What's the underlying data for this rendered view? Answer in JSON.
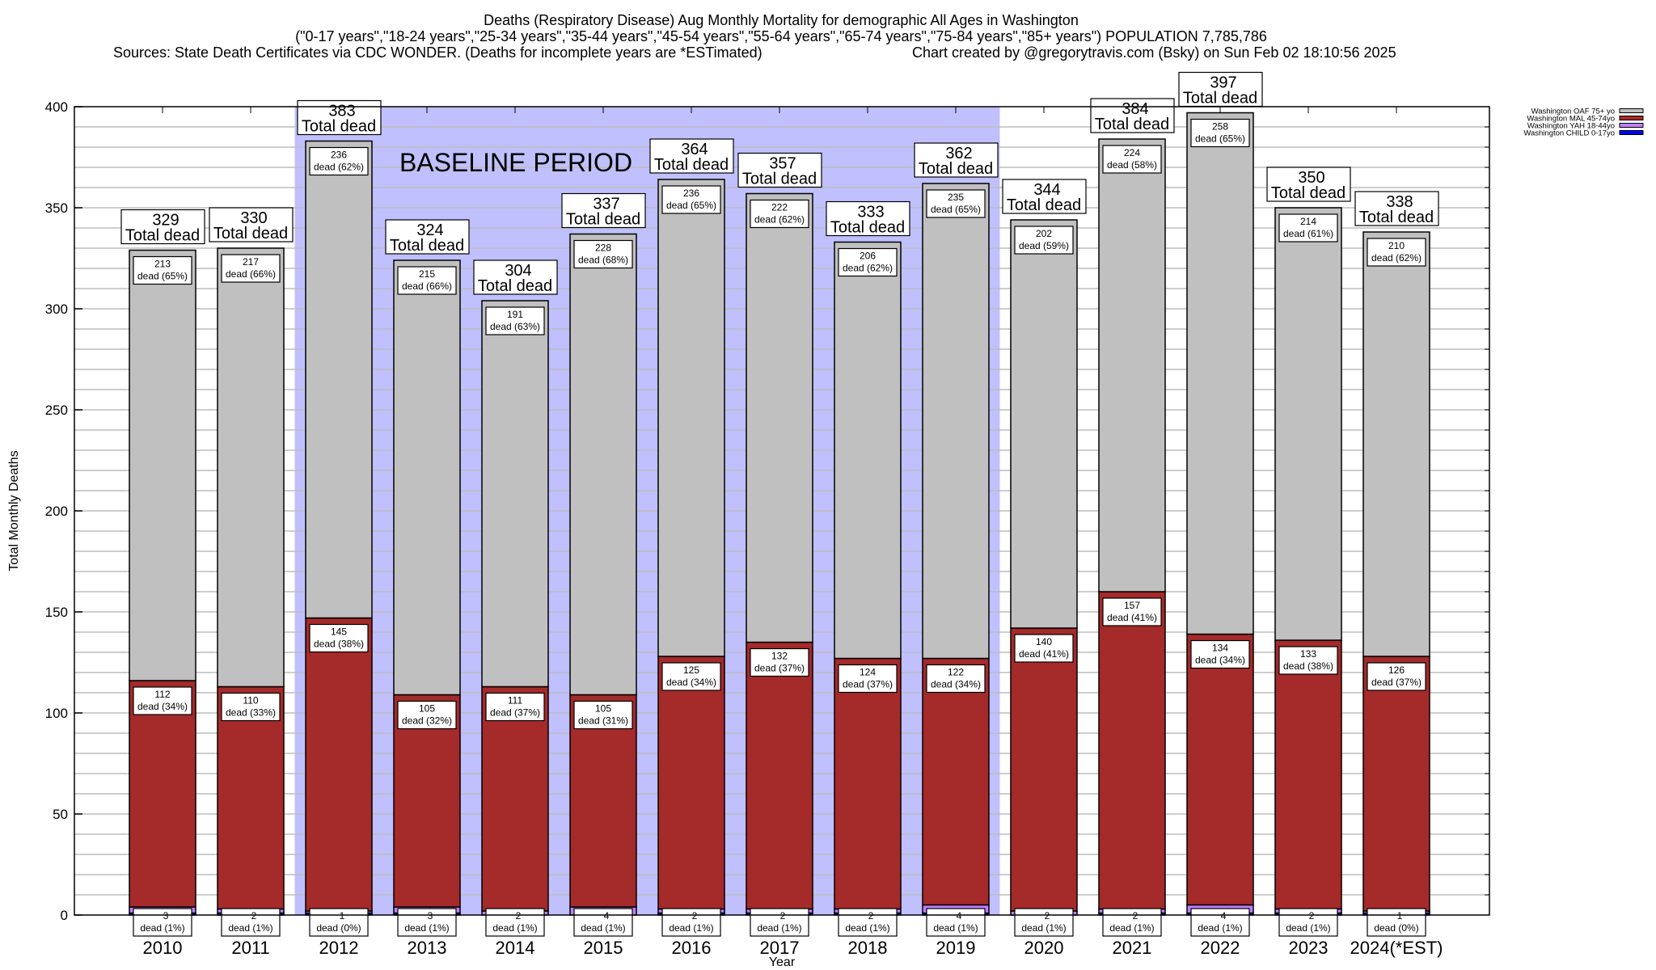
{
  "chart_data": {
    "type": "bar",
    "stacked": true,
    "title": "Deaths (Respiratory Disease) Aug Monthly Mortality for demographic All Ages in Washington",
    "subtitle": "(\"0-17 years\",\"18-24 years\",\"25-34 years\",\"35-44 years\",\"45-54 years\",\"55-64 years\",\"65-74 years\",\"75-84 years\",\"85+ years\") POPULATION 7,785,786",
    "source": "Sources: State Death Certificates via CDC WONDER. (Deaths for incomplete years are *ESTimated)",
    "credit": "Chart created by @gregorytravis.com (Bsky) on Sun Feb 02 18:10:56 2025",
    "xlabel": "Year",
    "ylabel": "Total Monthly Deaths",
    "ylim": [
      0,
      400
    ],
    "yticks": [
      0,
      50,
      100,
      150,
      200,
      250,
      300,
      350,
      400
    ],
    "grid": true,
    "legend_position": "top-right",
    "categories": [
      "2010",
      "2011",
      "2012",
      "2013",
      "2014",
      "2015",
      "2016",
      "2017",
      "2018",
      "2019",
      "2020",
      "2021",
      "2022",
      "2023",
      "2024(*EST)"
    ],
    "totals": [
      329,
      330,
      383,
      324,
      304,
      337,
      364,
      357,
      333,
      362,
      344,
      384,
      397,
      350,
      338
    ],
    "total_label_suffix": "Total dead",
    "segment_label_word": "dead",
    "series": [
      {
        "name": "Washington CHILD 0-17yo",
        "color": "#0000ff",
        "values": [
          1,
          1,
          1,
          1,
          0,
          0,
          1,
          1,
          1,
          1,
          0,
          1,
          1,
          1,
          1
        ],
        "pct": []
      },
      {
        "name": "Washington YAH 18-44yo",
        "color": "#c080ff",
        "values": [
          3,
          2,
          1,
          3,
          2,
          4,
          2,
          2,
          2,
          4,
          2,
          2,
          4,
          2,
          1
        ],
        "pct": [
          1,
          1,
          0,
          1,
          1,
          1,
          1,
          1,
          1,
          1,
          1,
          1,
          1,
          1,
          0
        ]
      },
      {
        "name": "Washington MAL 45-74yo",
        "color": "#a52a2a",
        "values": [
          112,
          110,
          145,
          105,
          111,
          105,
          125,
          132,
          124,
          122,
          140,
          157,
          134,
          133,
          126
        ],
        "pct": [
          34,
          33,
          38,
          32,
          37,
          31,
          34,
          37,
          37,
          34,
          41,
          41,
          34,
          38,
          37
        ]
      },
      {
        "name": "Washington OAF 75+ yo",
        "color": "#c0c0c0",
        "values": [
          213,
          217,
          236,
          215,
          191,
          228,
          236,
          222,
          206,
          235,
          202,
          224,
          258,
          214,
          210
        ],
        "pct": [
          65,
          66,
          62,
          66,
          63,
          68,
          65,
          62,
          62,
          65,
          59,
          58,
          65,
          61,
          62
        ]
      }
    ],
    "annotation": {
      "text": "BASELINE PERIOD",
      "range": [
        "2012",
        "2019"
      ],
      "color": "#c0c0ff"
    }
  }
}
